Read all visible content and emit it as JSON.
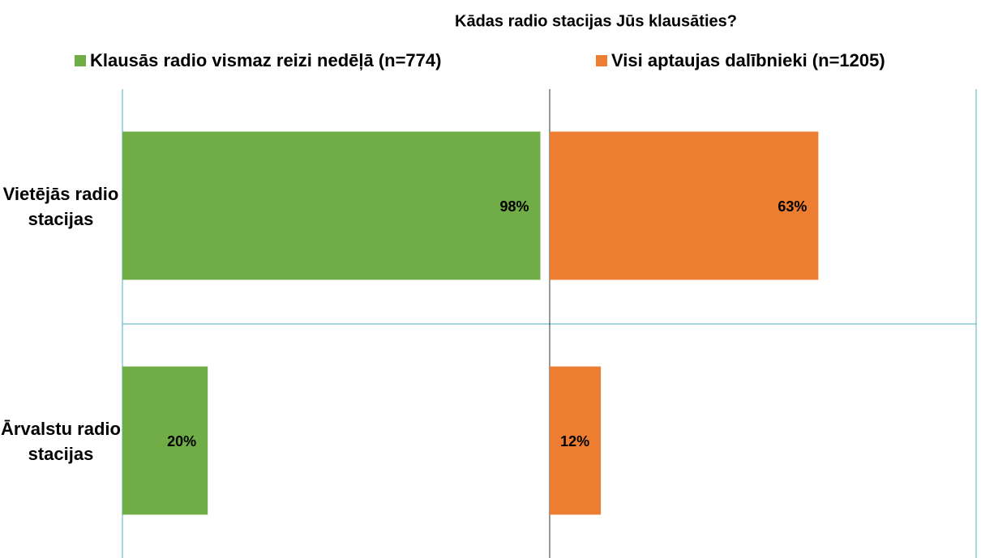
{
  "chart_data": {
    "type": "bar",
    "orientation": "horizontal",
    "layout": "panels",
    "title": "Kādas radio stacijas Jūs klausāties?",
    "categories": [
      "Vietējās radio stacijas",
      "Ārvalstu radio stacijas"
    ],
    "series": [
      {
        "name": "Klausās radio vismaz reizi nedēļā (n=774)",
        "color": "#70ad47",
        "values": [
          98,
          20
        ],
        "value_labels": [
          "98%",
          "20%"
        ]
      },
      {
        "name": "Visi aptaujas dalībnieki (n=1205)",
        "color": "#ed7d31",
        "values": [
          63,
          12
        ],
        "value_labels": [
          "63%",
          "12%"
        ]
      }
    ],
    "xlim": [
      0,
      100
    ],
    "legend": "top"
  }
}
